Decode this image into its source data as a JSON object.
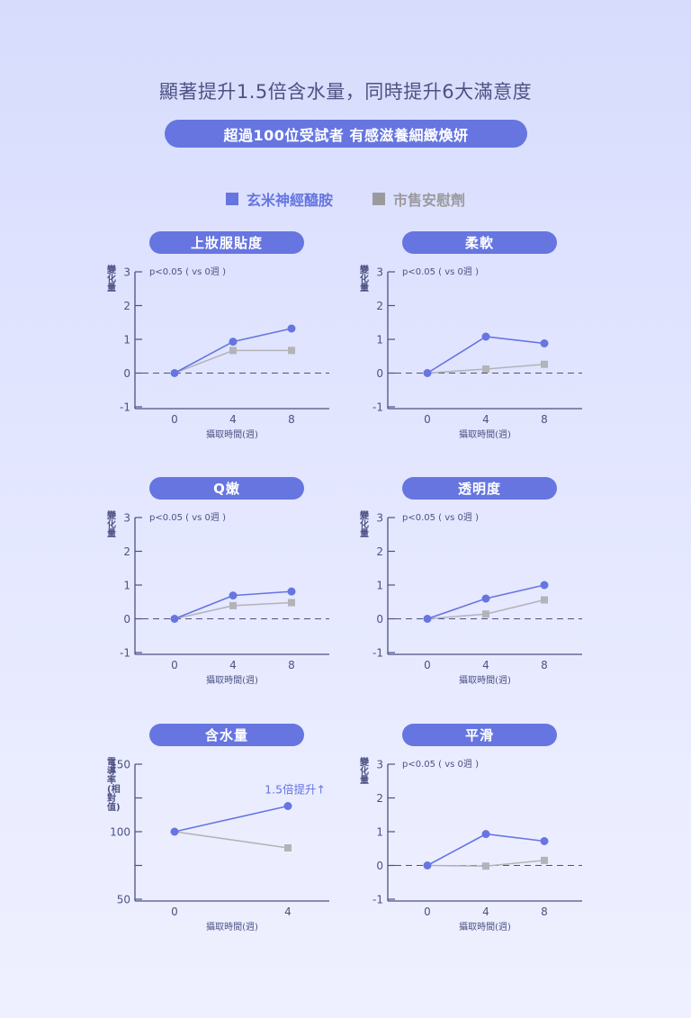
{
  "header": {
    "headline": "顯著提升1.5倍含水量，同時提升6大滿意度",
    "subtitle": "超過100位受試者 有感滋養細緻煥妍"
  },
  "legend": {
    "items": [
      {
        "label": "玄米神經醯胺",
        "color": "#6675e0",
        "marker": "circle"
      },
      {
        "label": "市售安慰劑",
        "color": "#a3a3a8",
        "marker": "square"
      }
    ]
  },
  "colors": {
    "accent": "#6675e0",
    "placebo": "#b3b3b8",
    "axis": "#4d5283",
    "text": "#4d5283"
  },
  "chart_data": [
    {
      "type": "line",
      "title": "上妝服貼度",
      "xlabel": "攝取時間(週)",
      "ylabel": "變化量",
      "annotation": "p<0.05 ( vs 0週 )",
      "x": [
        0,
        4,
        8
      ],
      "ylim": [
        -1,
        3
      ],
      "yticks": [
        -1,
        0,
        1,
        2,
        3
      ],
      "baseline": 0,
      "series": [
        {
          "name": "玄米神經醯胺",
          "values": [
            0,
            0.93,
            1.32
          ]
        },
        {
          "name": "市售安慰劑",
          "values": [
            0,
            0.67,
            0.67
          ]
        }
      ]
    },
    {
      "type": "line",
      "title": "柔軟",
      "xlabel": "攝取時間(週)",
      "ylabel": "變化量",
      "annotation": "p<0.05 ( vs 0週 )",
      "x": [
        0,
        4,
        8
      ],
      "ylim": [
        -1,
        3
      ],
      "yticks": [
        -1,
        0,
        1,
        2,
        3
      ],
      "baseline": 0,
      "series": [
        {
          "name": "玄米神經醯胺",
          "values": [
            0,
            1.08,
            0.88
          ]
        },
        {
          "name": "市售安慰劑",
          "values": [
            0,
            0.12,
            0.26
          ]
        }
      ]
    },
    {
      "type": "line",
      "title": "Q嫩",
      "xlabel": "攝取時間(週)",
      "ylabel": "變化量",
      "annotation": "p<0.05 ( vs 0週 )",
      "x": [
        0,
        4,
        8
      ],
      "ylim": [
        -1,
        3
      ],
      "yticks": [
        -1,
        0,
        1,
        2,
        3
      ],
      "baseline": 0,
      "series": [
        {
          "name": "玄米神經醯胺",
          "values": [
            0,
            0.69,
            0.81
          ]
        },
        {
          "name": "市售安慰劑",
          "values": [
            0,
            0.39,
            0.48
          ]
        }
      ]
    },
    {
      "type": "line",
      "title": "透明度",
      "xlabel": "攝取時間(週)",
      "ylabel": "變化量",
      "annotation": "p<0.05 ( vs 0週 )",
      "x": [
        0,
        4,
        8
      ],
      "ylim": [
        -1,
        3
      ],
      "yticks": [
        -1,
        0,
        1,
        2,
        3
      ],
      "baseline": 0,
      "series": [
        {
          "name": "玄米神經醯胺",
          "values": [
            0,
            0.6,
            1.0
          ]
        },
        {
          "name": "市售安慰劑",
          "values": [
            0,
            0.14,
            0.56
          ]
        }
      ]
    },
    {
      "type": "line",
      "title": "含水量",
      "xlabel": "攝取時間(週)",
      "ylabel": "電導率(相對值)",
      "annotation": "1.5倍提升↑",
      "x": [
        0,
        4
      ],
      "ylim": [
        50,
        150
      ],
      "yticks": [
        50,
        75,
        100,
        125,
        150
      ],
      "ytick_labels": [
        "50",
        "",
        "100",
        "",
        "150"
      ],
      "series": [
        {
          "name": "玄米神經醯胺",
          "values": [
            100,
            119
          ]
        },
        {
          "name": "市售安慰劑",
          "values": [
            100,
            88
          ]
        }
      ]
    },
    {
      "type": "line",
      "title": "平滑",
      "xlabel": "攝取時間(週)",
      "ylabel": "變化量",
      "annotation": "p<0.05 ( vs 0週 )",
      "x": [
        0,
        4,
        8
      ],
      "ylim": [
        -1,
        3
      ],
      "yticks": [
        -1,
        0,
        1,
        2,
        3
      ],
      "baseline": 0,
      "series": [
        {
          "name": "玄米神經醯胺",
          "values": [
            0,
            0.93,
            0.72
          ]
        },
        {
          "name": "市售安慰劑",
          "values": [
            0,
            -0.02,
            0.15
          ]
        }
      ]
    }
  ]
}
